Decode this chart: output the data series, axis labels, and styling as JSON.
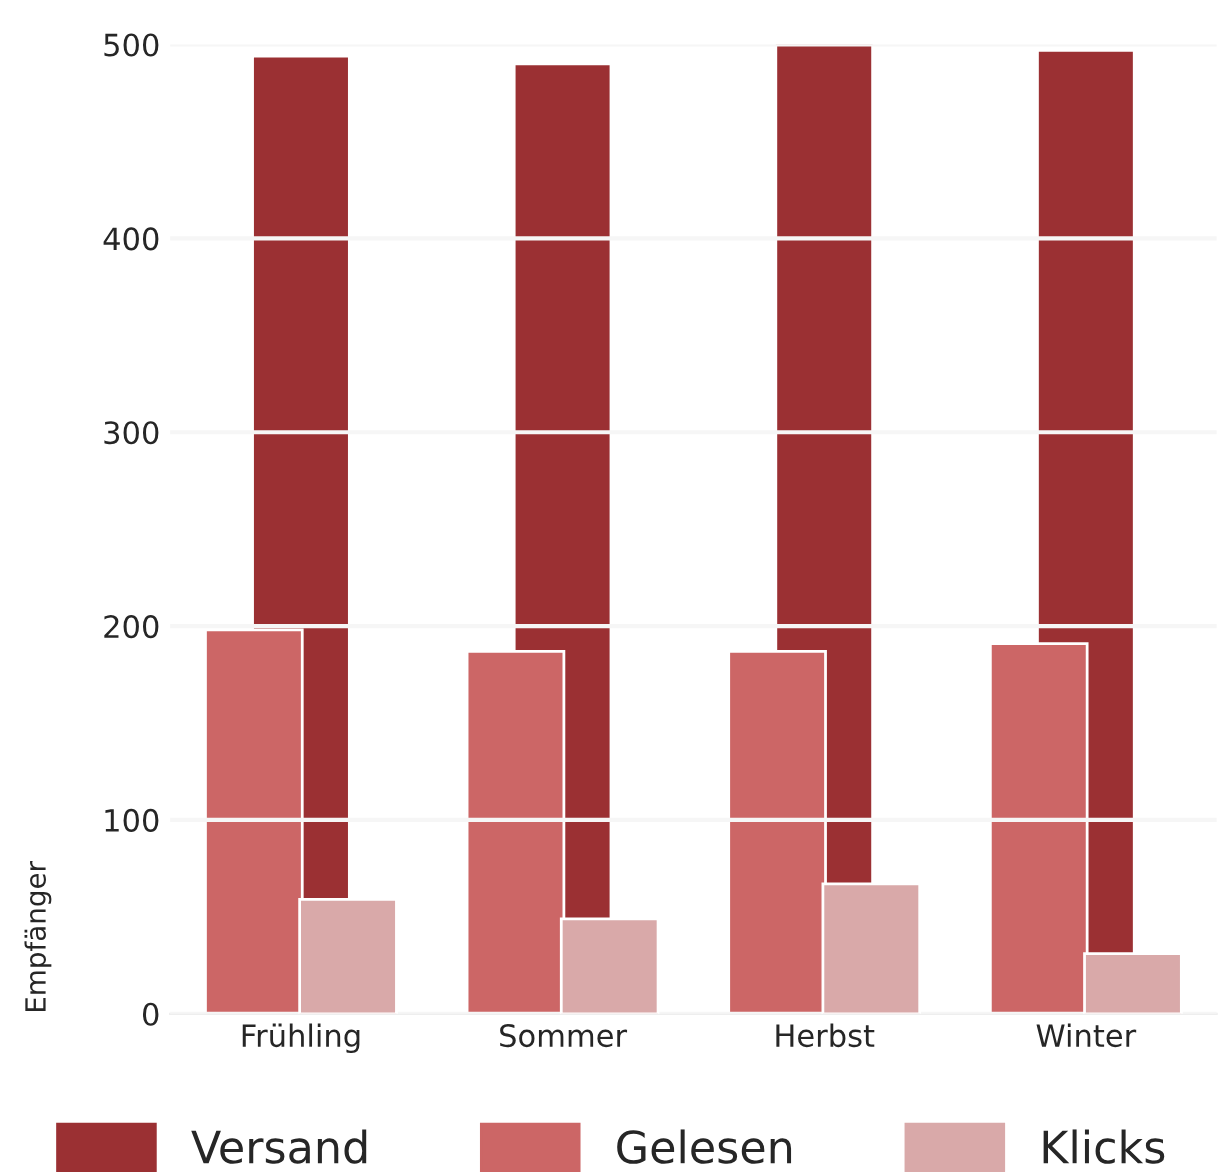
{
  "chart_data": {
    "type": "bar",
    "ylabel": "Empfänger",
    "categories": [
      "Frühling",
      "Sommer",
      "Herbst",
      "Winter"
    ],
    "series": [
      {
        "name": "Versand",
        "color": "#9b3033",
        "values": [
          494,
          490,
          500,
          497
        ]
      },
      {
        "name": "Gelesen",
        "color": "#cc6666",
        "values": [
          198,
          187,
          187,
          191
        ]
      },
      {
        "name": "Klicks",
        "color": "#d9a9a9",
        "values": [
          59,
          49,
          67,
          31
        ]
      }
    ],
    "ylim": [
      0,
      500
    ],
    "yticks": [
      0,
      100,
      200,
      300,
      400,
      500
    ],
    "grid": "y",
    "legend": "bottom"
  }
}
